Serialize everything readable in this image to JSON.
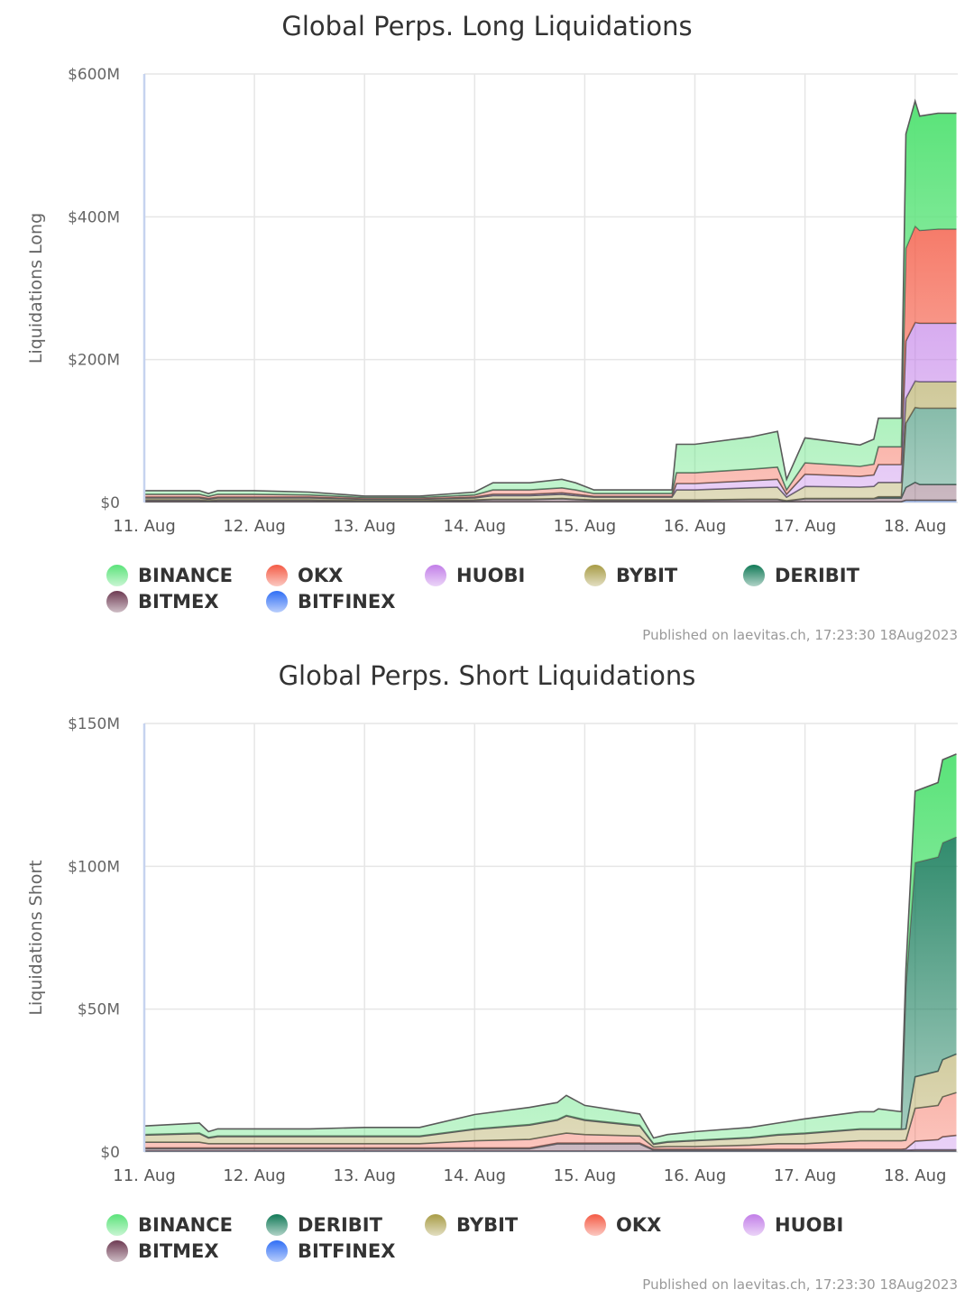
{
  "chart_data": [
    {
      "type": "area",
      "stacked": true,
      "title": "Global Perps. Long Liquidations",
      "ylabel": "Liquidations Long",
      "ylim": [
        0,
        600
      ],
      "y_unit": "$M",
      "yticks": [
        "$0",
        "$200M",
        "$400M",
        "$600M"
      ],
      "ytick_values": [
        0,
        200,
        400,
        600
      ],
      "xticks": [
        "11. Aug",
        "12. Aug",
        "13. Aug",
        "14. Aug",
        "15. Aug",
        "16. Aug",
        "17. Aug",
        "18. Aug"
      ],
      "xtick_dates": [
        "2023-08-11",
        "2023-08-12",
        "2023-08-13",
        "2023-08-14",
        "2023-08-15",
        "2023-08-16",
        "2023-08-17",
        "2023-08-18"
      ],
      "grid": true,
      "legend_position": "bottom",
      "published": "Published on laevitas.ch, 17:23:30 18Aug2023",
      "x": [
        "2023-08-11T00:00",
        "2023-08-11T12:00",
        "2023-08-11T14:00",
        "2023-08-11T16:00",
        "2023-08-12T00:00",
        "2023-08-12T12:00",
        "2023-08-13T00:00",
        "2023-08-13T12:00",
        "2023-08-14T00:00",
        "2023-08-14T04:00",
        "2023-08-14T12:00",
        "2023-08-14T19:00",
        "2023-08-14T22:00",
        "2023-08-15T02:00",
        "2023-08-15T12:00",
        "2023-08-15T19:00",
        "2023-08-15T20:00",
        "2023-08-16T00:00",
        "2023-08-16T12:00",
        "2023-08-16T18:00",
        "2023-08-16T20:00",
        "2023-08-17T00:00",
        "2023-08-17T12:00",
        "2023-08-17T15:00",
        "2023-08-17T16:00",
        "2023-08-17T21:00",
        "2023-08-17T22:00",
        "2023-08-18T00:00",
        "2023-08-18T01:00",
        "2023-08-18T05:00",
        "2023-08-18T09:00"
      ],
      "series": [
        {
          "name": "BINANCE",
          "color": "#5be37a",
          "values": [
            5,
            5,
            4,
            5,
            5,
            4,
            2,
            2,
            4,
            10,
            10,
            12,
            10,
            5,
            5,
            5,
            40,
            40,
            45,
            50,
            15,
            35,
            30,
            35,
            40,
            40,
            160,
            175,
            160,
            162,
            162
          ]
        },
        {
          "name": "OKX",
          "color": "#f45b45",
          "values": [
            4,
            4,
            3,
            4,
            4,
            3,
            2,
            2,
            3,
            6,
            6,
            7,
            6,
            4,
            4,
            4,
            15,
            15,
            16,
            17,
            6,
            16,
            14,
            15,
            25,
            25,
            130,
            135,
            130,
            132,
            132
          ]
        },
        {
          "name": "HUOBI",
          "color": "#c27ee8",
          "values": [
            1,
            1,
            1,
            1,
            1,
            1,
            0.5,
            0.5,
            1,
            2,
            2,
            2,
            2,
            1,
            1,
            1,
            9,
            9,
            10,
            11,
            4,
            17,
            15,
            16,
            25,
            25,
            80,
            82,
            82,
            82,
            82
          ]
        },
        {
          "name": "BYBIT",
          "color": "#a89c45",
          "values": [
            3,
            3,
            2,
            3,
            3,
            3,
            2,
            2,
            3,
            5,
            5,
            6,
            5,
            4,
            4,
            4,
            14,
            14,
            16,
            17,
            5,
            17,
            16,
            17,
            20,
            20,
            35,
            37,
            37,
            37,
            37
          ]
        },
        {
          "name": "DERIBIT",
          "color": "#127a57",
          "values": [
            0.5,
            0.5,
            0.5,
            0.5,
            0.5,
            0.5,
            0.5,
            0.5,
            0.5,
            0.5,
            0.5,
            0.5,
            0.5,
            0.5,
            0.5,
            0.5,
            0.5,
            0.5,
            0.5,
            0.5,
            0.5,
            0.5,
            0.5,
            0.5,
            2,
            2,
            90,
            105,
            107,
            107,
            107
          ]
        },
        {
          "name": "BITMEX",
          "color": "#6d3a52",
          "values": [
            2,
            2,
            1,
            2,
            2,
            2,
            1,
            1,
            2,
            3,
            3,
            4,
            3,
            2,
            2,
            2,
            2,
            2,
            3,
            3,
            1,
            4,
            4,
            4,
            5,
            5,
            18,
            25,
            22,
            22,
            22
          ]
        },
        {
          "name": "BITFINEX",
          "color": "#2f6ef5",
          "values": [
            1,
            1,
            1,
            1,
            1,
            1,
            1,
            1,
            1,
            1,
            1,
            1,
            1,
            1,
            1,
            1,
            1,
            1,
            1,
            1,
            1,
            1,
            1,
            1,
            1,
            1,
            3,
            3,
            3,
            3,
            3
          ]
        }
      ]
    },
    {
      "type": "area",
      "stacked": true,
      "title": "Global Perps. Short Liquidations",
      "ylabel": "Liquidations Short",
      "ylim": [
        0,
        150
      ],
      "y_unit": "$M",
      "yticks": [
        "$0",
        "$50M",
        "$100M",
        "$150M"
      ],
      "ytick_values": [
        0,
        50,
        100,
        150
      ],
      "xticks": [
        "11. Aug",
        "12. Aug",
        "13. Aug",
        "14. Aug",
        "15. Aug",
        "16. Aug",
        "17. Aug",
        "18. Aug"
      ],
      "xtick_dates": [
        "2023-08-11",
        "2023-08-12",
        "2023-08-13",
        "2023-08-14",
        "2023-08-15",
        "2023-08-16",
        "2023-08-17",
        "2023-08-18"
      ],
      "grid": true,
      "legend_position": "bottom",
      "published": "Published on laevitas.ch, 17:23:30 18Aug2023",
      "x": [
        "2023-08-11T00:00",
        "2023-08-11T12:00",
        "2023-08-11T14:00",
        "2023-08-11T16:00",
        "2023-08-12T00:00",
        "2023-08-12T12:00",
        "2023-08-13T00:00",
        "2023-08-13T12:00",
        "2023-08-14T00:00",
        "2023-08-14T12:00",
        "2023-08-14T18:00",
        "2023-08-14T20:00",
        "2023-08-15T00:00",
        "2023-08-15T12:00",
        "2023-08-15T15:00",
        "2023-08-15T18:00",
        "2023-08-16T00:00",
        "2023-08-16T12:00",
        "2023-08-16T18:00",
        "2023-08-17T00:00",
        "2023-08-17T12:00",
        "2023-08-17T15:00",
        "2023-08-17T16:00",
        "2023-08-17T21:00",
        "2023-08-17T22:00",
        "2023-08-18T00:00",
        "2023-08-18T05:00",
        "2023-08-18T06:00",
        "2023-08-18T09:00"
      ],
      "series": [
        {
          "name": "BINANCE",
          "color": "#5be37a",
          "values": [
            3,
            3.5,
            2,
            2.5,
            2.5,
            2.5,
            3,
            3,
            5,
            6,
            6,
            7,
            5,
            4,
            2,
            2.5,
            3,
            3.5,
            4,
            5,
            6,
            6,
            7,
            6,
            6,
            25,
            26,
            29,
            29
          ]
        },
        {
          "name": "DERIBIT",
          "color": "#127a57",
          "values": [
            0.2,
            0.2,
            0.2,
            0.2,
            0.2,
            0.2,
            0.2,
            0.2,
            0.2,
            0.2,
            0.2,
            0.2,
            0.2,
            0.2,
            0.2,
            0.2,
            0.2,
            0.2,
            0.2,
            0.2,
            0.2,
            0.2,
            0.2,
            0.2,
            50,
            75,
            75,
            76,
            76
          ]
        },
        {
          "name": "BYBIT",
          "color": "#a89c45",
          "values": [
            2.5,
            3,
            2,
            2.5,
            2.5,
            2.5,
            2.5,
            2.5,
            4,
            5,
            5,
            6,
            5,
            3.5,
            1,
            1.5,
            2,
            2.5,
            3,
            3.5,
            4,
            4,
            4,
            4,
            4,
            11,
            12,
            13,
            13.5
          ]
        },
        {
          "name": "OKX",
          "color": "#f45b45",
          "values": [
            2,
            2,
            1.5,
            1.5,
            1.5,
            1.5,
            1.5,
            1.5,
            2.5,
            3,
            3,
            3.5,
            3,
            2.5,
            0.8,
            1,
            1,
            1.5,
            2,
            2,
            3,
            3,
            3,
            3,
            3,
            11.5,
            12,
            14,
            15
          ]
        },
        {
          "name": "HUOBI",
          "color": "#c27ee8",
          "values": [
            0.3,
            0.3,
            0.3,
            0.3,
            0.3,
            0.3,
            0.3,
            0.3,
            0.3,
            0.3,
            0.3,
            0.3,
            0.3,
            0.3,
            0.3,
            0.3,
            0.3,
            0.3,
            0.3,
            0.3,
            0.3,
            0.3,
            0.3,
            0.3,
            0.5,
            3,
            3.5,
            4.5,
            5
          ]
        },
        {
          "name": "BITMEX",
          "color": "#6d3a52",
          "values": [
            0.8,
            0.8,
            0.8,
            0.8,
            0.8,
            0.8,
            0.8,
            0.8,
            0.8,
            0.8,
            2.5,
            2.5,
            2.5,
            2.5,
            0.3,
            0.3,
            0.3,
            0.3,
            0.3,
            0.3,
            0.3,
            0.3,
            0.3,
            0.3,
            0.3,
            0.5,
            0.5,
            0.5,
            0.5
          ]
        },
        {
          "name": "BITFINEX",
          "color": "#2f6ef5",
          "values": [
            0.3,
            0.3,
            0.3,
            0.3,
            0.3,
            0.3,
            0.3,
            0.3,
            0.3,
            0.3,
            0.3,
            0.3,
            0.3,
            0.3,
            0.3,
            0.3,
            0.3,
            0.3,
            0.3,
            0.3,
            0.3,
            0.3,
            0.3,
            0.3,
            0.3,
            0.3,
            0.3,
            0.3,
            0.3
          ]
        }
      ]
    }
  ]
}
